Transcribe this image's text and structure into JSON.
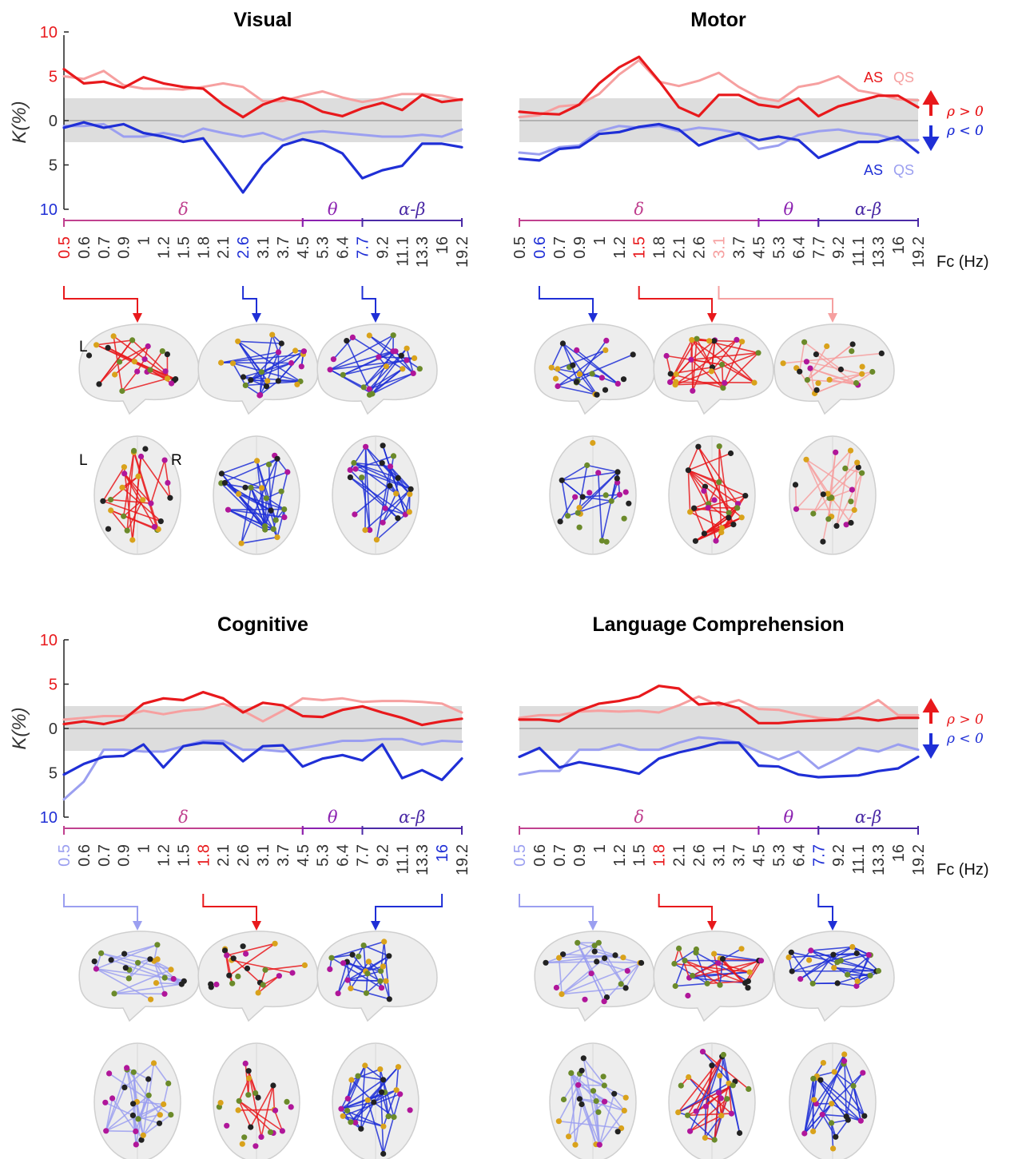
{
  "colors": {
    "as_pos": "#e8191c",
    "qs_pos": "#f6a0a0",
    "as_neg": "#1f2fd6",
    "qs_neg": "#9b9ff0",
    "band": "#dddddd",
    "delta": "#c0418f",
    "theta": "#8b21b0",
    "alphabeta": "#4b2aa6",
    "node_gold": "#d9a21b",
    "node_magenta": "#b0169a",
    "node_black": "#222222",
    "node_green": "#6b8a2a"
  },
  "labels": {
    "fc_axis": "Fc (Hz)",
    "band_delta": "δ",
    "band_theta": "θ",
    "band_alphabeta": "α-β",
    "legend_as": "AS",
    "legend_qs": "QS",
    "rho_pos": "ρ > 0",
    "rho_neg": "ρ < 0",
    "brain_L": "L",
    "brain_R": "R"
  },
  "chart_data": [
    {
      "type": "line",
      "title": "Visual",
      "ylabel": "K(%)",
      "x": [
        "0.5",
        "0.6",
        "0.7",
        "0.9",
        "1",
        "1.2",
        "1.5",
        "1.8",
        "2.1",
        "2.6",
        "3.1",
        "3.7",
        "4.5",
        "5.3",
        "6.4",
        "7.7",
        "9.2",
        "11.1",
        "13.3",
        "16",
        "19.2"
      ],
      "ylim": [
        -10,
        10
      ],
      "yticks": [
        "10",
        "5",
        "0",
        "5",
        "10"
      ],
      "series": [
        {
          "name": "AS",
          "sign": "pos",
          "values": [
            5.8,
            4.2,
            4.4,
            3.7,
            4.9,
            4.2,
            3.8,
            3.6,
            1.8,
            0.4,
            1.8,
            2.6,
            2.1,
            1.0,
            0.5,
            1.4,
            2.0,
            1.2,
            2.9,
            2.1,
            2.4
          ]
        },
        {
          "name": "QS",
          "sign": "pos",
          "values": [
            5.0,
            4.7,
            5.6,
            4.0,
            3.6,
            3.6,
            3.5,
            3.8,
            4.2,
            3.8,
            2.2,
            2.2,
            2.8,
            3.3,
            2.6,
            2.1,
            2.5,
            3.0,
            3.0,
            2.8,
            2.3
          ]
        },
        {
          "name": "AS",
          "sign": "neg",
          "values": [
            0.8,
            0.2,
            0.8,
            0.4,
            1.4,
            1.8,
            2.4,
            2.0,
            5.0,
            8.1,
            5.0,
            2.8,
            2.1,
            2.6,
            3.7,
            6.5,
            5.6,
            5.1,
            2.6,
            2.6,
            3.0
          ]
        },
        {
          "name": "QS",
          "sign": "neg",
          "values": [
            0.6,
            0.6,
            0.4,
            1.8,
            1.8,
            1.4,
            1.8,
            0.9,
            1.4,
            1.8,
            1.4,
            2.2,
            1.4,
            1.2,
            1.4,
            1.6,
            1.8,
            1.8,
            1.6,
            1.8,
            1.0
          ]
        }
      ],
      "highlight_ticks": [
        {
          "index": 0,
          "color": "as_pos"
        },
        {
          "index": 9,
          "color": "as_neg"
        },
        {
          "index": 15,
          "color": "as_neg"
        }
      ]
    },
    {
      "type": "line",
      "title": "Motor",
      "ylabel": "",
      "x": [
        "0.5",
        "0.6",
        "0.7",
        "0.9",
        "1",
        "1.2",
        "1.5",
        "1.8",
        "2.1",
        "2.6",
        "3.1",
        "3.7",
        "4.5",
        "5.3",
        "6.4",
        "7.7",
        "9.2",
        "11.1",
        "13.3",
        "16",
        "19.2"
      ],
      "ylim": [
        -10,
        10
      ],
      "series": [
        {
          "name": "AS",
          "sign": "pos",
          "values": [
            1.0,
            0.8,
            0.7,
            1.8,
            4.2,
            6.0,
            7.2,
            4.5,
            1.5,
            0.5,
            2.9,
            2.9,
            1.8,
            1.5,
            2.5,
            0.5,
            1.6,
            2.2,
            2.8,
            2.8,
            1.5
          ]
        },
        {
          "name": "QS",
          "sign": "pos",
          "values": [
            0.4,
            0.6,
            1.6,
            1.8,
            3.0,
            5.2,
            6.8,
            4.4,
            3.9,
            4.5,
            5.4,
            3.8,
            2.6,
            2.2,
            3.8,
            4.2,
            5.0,
            3.4,
            3.0,
            2.4,
            2.3
          ]
        },
        {
          "name": "AS",
          "sign": "neg",
          "values": [
            4.3,
            4.5,
            3.2,
            3.0,
            1.5,
            1.3,
            0.7,
            0.4,
            1.0,
            2.8,
            2.0,
            1.4,
            2.2,
            1.8,
            2.2,
            4.2,
            3.3,
            2.4,
            2.4,
            1.8,
            3.6
          ]
        },
        {
          "name": "QS",
          "sign": "neg",
          "values": [
            3.6,
            3.8,
            3.0,
            2.8,
            1.2,
            0.6,
            0.8,
            0.6,
            1.2,
            0.8,
            1.0,
            1.4,
            3.2,
            2.8,
            1.6,
            1.2,
            1.0,
            1.4,
            1.6,
            2.2,
            2.2
          ]
        }
      ],
      "highlight_ticks": [
        {
          "index": 1,
          "color": "as_neg"
        },
        {
          "index": 6,
          "color": "as_pos"
        },
        {
          "index": 10,
          "color": "qs_pos"
        }
      ]
    },
    {
      "type": "line",
      "title": "Cognitive",
      "ylabel": "K(%)",
      "x": [
        "0.5",
        "0.6",
        "0.7",
        "0.9",
        "1",
        "1.2",
        "1.5",
        "1.8",
        "2.1",
        "2.6",
        "3.1",
        "3.7",
        "4.5",
        "5.3",
        "6.4",
        "7.7",
        "9.2",
        "11.1",
        "13.3",
        "16",
        "19.2"
      ],
      "ylim": [
        -10,
        10
      ],
      "yticks": [
        "10",
        "5",
        "0",
        "5",
        "10"
      ],
      "series": [
        {
          "name": "AS",
          "sign": "pos",
          "values": [
            0.5,
            0.8,
            0.5,
            1.0,
            2.8,
            3.4,
            3.2,
            4.1,
            3.4,
            1.8,
            2.9,
            2.6,
            1.4,
            1.3,
            2.1,
            2.5,
            1.8,
            1.2,
            0.4,
            0.8,
            1.1
          ]
        },
        {
          "name": "QS",
          "sign": "pos",
          "values": [
            1.0,
            1.2,
            1.4,
            1.4,
            2.0,
            1.6,
            2.0,
            2.2,
            2.8,
            2.0,
            0.8,
            2.0,
            3.4,
            3.2,
            3.4,
            3.0,
            3.1,
            3.1,
            3.0,
            2.8,
            1.8
          ]
        },
        {
          "name": "AS",
          "sign": "neg",
          "values": [
            5.2,
            4.0,
            3.2,
            3.1,
            1.8,
            4.4,
            2.0,
            1.6,
            1.7,
            3.7,
            2.0,
            1.9,
            4.3,
            3.4,
            3.0,
            3.6,
            1.8,
            5.6,
            4.7,
            5.8,
            3.4
          ]
        },
        {
          "name": "QS",
          "sign": "neg",
          "values": [
            8.0,
            6.0,
            2.4,
            2.4,
            2.6,
            2.6,
            2.0,
            1.4,
            1.4,
            2.4,
            2.4,
            2.6,
            2.2,
            1.8,
            1.4,
            1.4,
            1.2,
            1.2,
            1.8,
            1.4,
            1.5
          ]
        }
      ],
      "highlight_ticks": [
        {
          "index": 0,
          "color": "qs_neg"
        },
        {
          "index": 7,
          "color": "as_pos"
        },
        {
          "index": 19,
          "color": "as_neg"
        }
      ]
    },
    {
      "type": "line",
      "title": "Language Comprehension",
      "ylabel": "",
      "x": [
        "0.5",
        "0.6",
        "0.7",
        "0.9",
        "1",
        "1.2",
        "1.5",
        "1.8",
        "2.1",
        "2.6",
        "3.1",
        "3.7",
        "4.5",
        "5.3",
        "6.4",
        "7.7",
        "9.2",
        "11.1",
        "13.3",
        "16",
        "19.2"
      ],
      "ylim": [
        -10,
        10
      ],
      "series": [
        {
          "name": "AS",
          "sign": "pos",
          "values": [
            1.0,
            1.0,
            0.8,
            2.0,
            2.8,
            3.1,
            3.6,
            4.8,
            4.5,
            2.7,
            2.9,
            2.3,
            0.6,
            0.6,
            0.8,
            0.9,
            1.0,
            1.2,
            0.9,
            1.2,
            1.2
          ]
        },
        {
          "name": "QS",
          "sign": "pos",
          "values": [
            1.2,
            1.5,
            1.5,
            1.9,
            2.0,
            1.9,
            2.0,
            1.8,
            2.6,
            3.6,
            2.6,
            3.2,
            2.2,
            2.1,
            1.6,
            1.2,
            1.0,
            2.0,
            3.2,
            1.5,
            1.5
          ]
        },
        {
          "name": "AS",
          "sign": "neg",
          "values": [
            3.2,
            2.2,
            4.4,
            3.8,
            4.2,
            4.6,
            5.1,
            3.4,
            2.7,
            2.2,
            1.6,
            1.6,
            4.2,
            4.3,
            5.2,
            5.5,
            5.4,
            5.3,
            4.8,
            4.5,
            3.2
          ]
        },
        {
          "name": "QS",
          "sign": "neg",
          "values": [
            5.2,
            4.8,
            4.8,
            2.4,
            2.4,
            1.8,
            2.4,
            2.4,
            1.6,
            1.0,
            1.2,
            1.6,
            2.6,
            3.5,
            2.6,
            4.5,
            3.4,
            2.2,
            2.6,
            1.8,
            2.4
          ]
        }
      ],
      "highlight_ticks": [
        {
          "index": 0,
          "color": "qs_neg"
        },
        {
          "index": 7,
          "color": "as_pos"
        },
        {
          "index": 15,
          "color": "as_neg"
        }
      ]
    }
  ],
  "connectomes": [
    {
      "panel": 0,
      "color": "as_pos",
      "density": 22
    },
    {
      "panel": 0,
      "color": "as_neg",
      "density": 40
    },
    {
      "panel": 0,
      "color": "as_neg",
      "density": 32
    },
    {
      "panel": 1,
      "color": "as_neg",
      "density": 16
    },
    {
      "panel": 1,
      "color": "as_pos",
      "density": 45
    },
    {
      "panel": 1,
      "color": "qs_pos",
      "density": 22
    },
    {
      "panel": 2,
      "color": "qs_neg",
      "density": 32
    },
    {
      "panel": 2,
      "color": "as_pos",
      "density": 14
    },
    {
      "panel": 2,
      "color": "as_neg",
      "density": 32
    },
    {
      "panel": 3,
      "color": "qs_neg",
      "density": 26
    },
    {
      "panel": 3,
      "color": "mixed",
      "density": 32
    },
    {
      "panel": 3,
      "color": "as_neg",
      "density": 36
    }
  ]
}
